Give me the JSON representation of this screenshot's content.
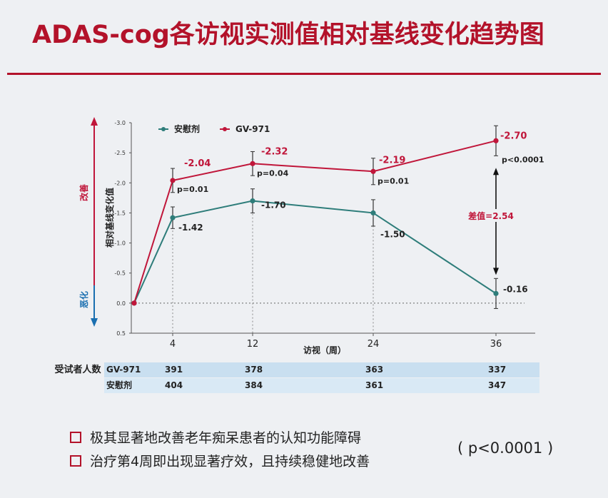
{
  "page_title": "ADAS-cog各访视实测值相对基线变化趋势图",
  "chart_data": {
    "type": "line",
    "ylabel": "相对基线变化值",
    "xlabel": "访视（周）",
    "x": [
      0,
      4,
      12,
      24,
      36
    ],
    "xticks": [
      "4",
      "12",
      "24",
      "36"
    ],
    "ylim": [
      0.5,
      -3.0
    ],
    "yticks": [
      "-3.0",
      "-2.5",
      "-2.0",
      "-1.5",
      "-1.0",
      "-0.5",
      "0.0",
      "0.5"
    ],
    "y_direction": "inverted",
    "improve_label": "改善",
    "worsen_label": "恶化",
    "legend": "top-left",
    "series": [
      {
        "name": "安慰剂",
        "color": "#2e7d7a",
        "values": [
          0,
          -1.42,
          -1.7,
          -1.5,
          -0.16
        ],
        "labels": [
          "",
          "-1.42",
          "-1.70",
          "-1.50",
          "-0.16"
        ],
        "err": [
          0,
          0.18,
          0.2,
          0.22,
          0.25
        ]
      },
      {
        "name": "GV-971",
        "color": "#c0163a",
        "values": [
          0,
          -2.04,
          -2.32,
          -2.19,
          -2.7
        ],
        "labels": [
          "",
          "-2.04",
          "-2.32",
          "-2.19",
          "-2.70"
        ],
        "err": [
          0,
          0.2,
          0.2,
          0.22,
          0.25
        ]
      }
    ],
    "pvalues": [
      "",
      "p=0.01",
      "p=0.04",
      "p=0.01",
      "p<0.0001"
    ],
    "difference_label": "差值=2.54"
  },
  "table": {
    "header": "受试者人数",
    "rows": [
      {
        "name": "GV-971",
        "values": [
          "391",
          "378",
          "363",
          "337"
        ]
      },
      {
        "name": "安慰剂",
        "values": [
          "404",
          "384",
          "361",
          "347"
        ]
      }
    ]
  },
  "bullets": [
    "极其显著地改善老年痴呆患者的认知功能障碍",
    "治疗第4周即出现显著疗效，且持续稳健地改善"
  ],
  "p_note": "( p<0.0001 )",
  "colors": {
    "accent": "#b3122a",
    "placebo": "#2e7d7a",
    "drug": "#c0163a"
  }
}
